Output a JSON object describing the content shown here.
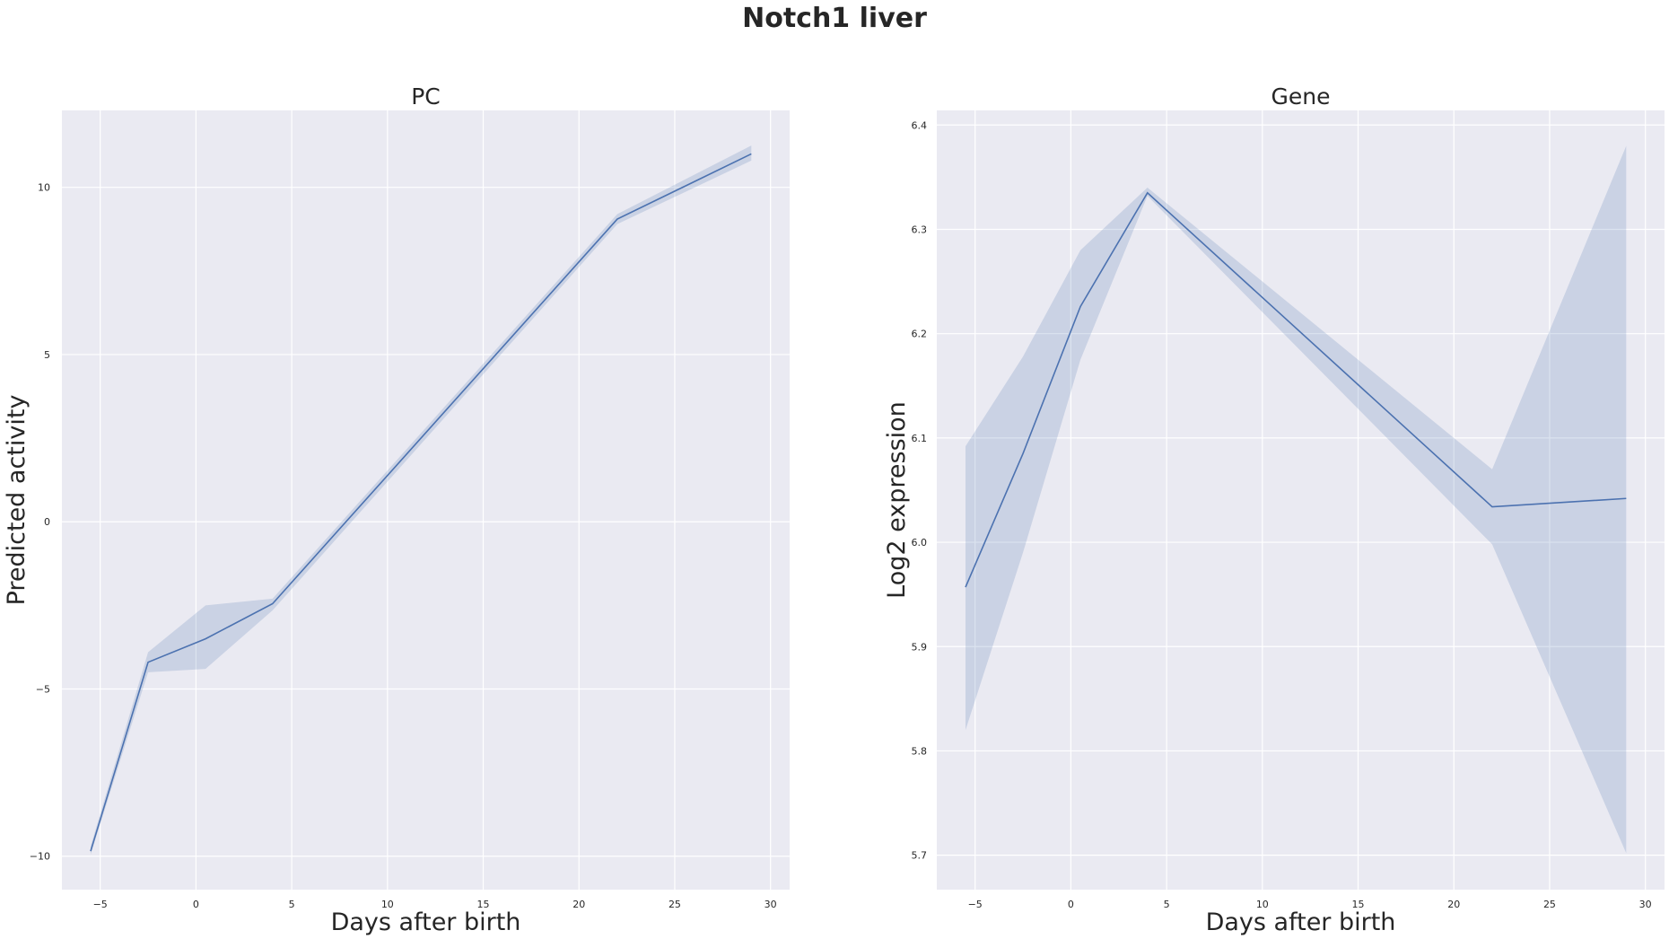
{
  "title": "Notch1 liver",
  "chart_data": [
    {
      "type": "line",
      "title": "PC",
      "xlabel": "Days after birth",
      "ylabel": "Predicted activity",
      "xlim": [
        -7,
        31
      ],
      "ylim": [
        -11,
        12.3
      ],
      "xticks": [
        -5,
        0,
        5,
        10,
        15,
        20,
        25,
        30
      ],
      "xtick_labels": [
        "−5",
        "0",
        "5",
        "10",
        "15",
        "20",
        "25",
        "30"
      ],
      "yticks": [
        -10,
        -5,
        0,
        5,
        10
      ],
      "ytick_labels": [
        "−10",
        "−5",
        "0",
        "5",
        "10"
      ],
      "grid": true,
      "series": [
        {
          "x": [
            -5.5,
            -2.5,
            0.5,
            4,
            22,
            29
          ],
          "y": [
            -9.85,
            -4.2,
            -3.5,
            -2.45,
            9.05,
            11.0
          ],
          "ci_low": [
            -9.95,
            -4.5,
            -4.4,
            -2.65,
            8.9,
            10.8
          ],
          "ci_high": [
            -9.7,
            -3.9,
            -2.5,
            -2.3,
            9.2,
            11.25
          ]
        }
      ],
      "colors": {
        "line": "#4c72b0",
        "background": "#eaeaf2"
      }
    },
    {
      "type": "line",
      "title": "Gene",
      "xlabel": "Days after birth",
      "ylabel": "Log2 expression",
      "xlim": [
        -7,
        31
      ],
      "ylim": [
        5.667,
        6.414
      ],
      "xticks": [
        -5,
        0,
        5,
        10,
        15,
        20,
        25,
        30
      ],
      "xtick_labels": [
        "−5",
        "0",
        "5",
        "10",
        "15",
        "20",
        "25",
        "30"
      ],
      "yticks": [
        5.7,
        5.8,
        5.9,
        6.0,
        6.1,
        6.2,
        6.3,
        6.4
      ],
      "ytick_labels": [
        "5.7",
        "5.8",
        "5.9",
        "6.0",
        "6.1",
        "6.2",
        "6.3",
        "6.4"
      ],
      "grid": true,
      "series": [
        {
          "x": [
            -5.5,
            -2.5,
            0.5,
            4,
            22,
            29
          ],
          "y": [
            5.957,
            6.085,
            6.226,
            6.335,
            6.034,
            6.042
          ],
          "ci_low": [
            5.82,
            5.99,
            6.175,
            6.332,
            5.998,
            5.702
          ],
          "ci_high": [
            6.092,
            6.178,
            6.28,
            6.34,
            6.07,
            6.38
          ]
        }
      ],
      "colors": {
        "line": "#4c72b0",
        "background": "#eaeaf2"
      }
    }
  ]
}
